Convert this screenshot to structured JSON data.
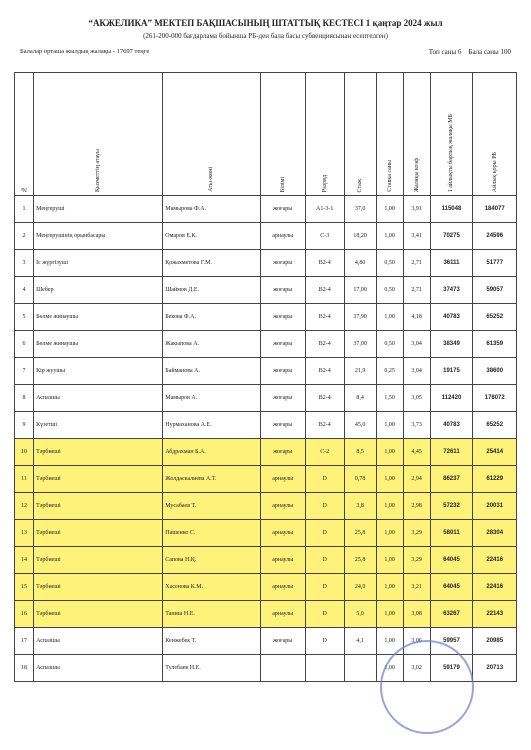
{
  "header": {
    "title": "“АКЖЕЛИКА” МЕКТЕП БАҚШАСЫНЫҢ ШТАТТЫҚ КЕСТЕСІ 1 қаңтар 2024 жыл",
    "subtitle": "(261-200-000 бағдарлама бойынша РБ-ден бала басы субвенциясынан есептелген)",
    "note": "Балалар орташа жылдық жалақы - 17697 теңге",
    "groups": "Топ саны 6",
    "children": "Бала саны 100"
  },
  "table": {
    "columns": [
      "№",
      "Қызметтің атауы",
      "Аты-жөні",
      "Білімі",
      "Разряд",
      "Стаж",
      "Ставка саны",
      "Жалақы коэф",
      "1 айлықты барлық жалақы МБ",
      "Айлық қоры РБ"
    ],
    "rows": [
      [
        "1",
        "Меңгеруші",
        "Мамырова Ф.А.",
        "жоғары",
        "А1-3-1",
        "37,0",
        "1,00",
        "3,91",
        "115048",
        "184077"
      ],
      [
        "2",
        "Меңгерушінің орынбасары",
        "Омаров Е.К.",
        "арнаулы",
        "С-3",
        "18,20",
        "1,00",
        "3,41",
        "70275",
        "24596"
      ],
      [
        "3",
        "Іс жүргізуші",
        "Қожахметова Г.М.",
        "жоғары",
        "В2-4",
        "4,80",
        "0,50",
        "2,71",
        "36111",
        "51777"
      ],
      [
        "4",
        "Шебер",
        "Шаймов Д.Е.",
        "жоғары",
        "В2-4",
        "17,00",
        "0,50",
        "2,71",
        "37473",
        "59057"
      ],
      [
        "5",
        "Бөлме жинаушы",
        "Бекова Ф.А.",
        "жоғары",
        "В2-4",
        "37,90",
        "1,00",
        "4,18",
        "40783",
        "65252"
      ],
      [
        "6",
        "Бөлме жинаушы",
        "Жакыпова А.",
        "жоғары",
        "В2-4",
        "37,00",
        "0,50",
        "3,04",
        "38349",
        "61359"
      ],
      [
        "7",
        "Кір жуушы",
        "Байманова А.",
        "жоғары",
        "В2-4",
        "21,9",
        "0,25",
        "3,04",
        "19175",
        "38600"
      ],
      [
        "8",
        "Аспазшы",
        "Мамыров А.",
        "жоғары",
        "В2-4",
        "8,4",
        "1,50",
        "3,05",
        "112420",
        "178072"
      ],
      [
        "9",
        "Күзетші",
        "Нурмаханова А.Е.",
        "жоғары",
        "В2-4",
        "45,0",
        "1,00",
        "3,73",
        "40783",
        "65252"
      ],
      [
        "10",
        "Тәрбиеші",
        "Абдрахман Б.А.",
        "жоғары",
        "С-2",
        "8,5",
        "1,00",
        "4,45",
        "72611",
        "25414"
      ],
      [
        "11",
        "Тәрбиеші",
        "Жолдаскалиева А.Т.",
        "арнаулы",
        "D",
        "0,78",
        "1,00",
        "2,94",
        "86237",
        "61229"
      ],
      [
        "12",
        "Тәрбиеші",
        "Мусабаев Т.",
        "арнаулы",
        "D",
        "3,8",
        "1,00",
        "2,98",
        "57232",
        "20031"
      ],
      [
        "13",
        "Тәрбиеші",
        "Пашенко С.",
        "арнаулы",
        "D",
        "25,8",
        "1,00",
        "3,29",
        "58011",
        "28304"
      ],
      [
        "14",
        "Тәрбиеші",
        "Сапова Н.Қ.",
        "арнаулы",
        "D",
        "25,8",
        "1,00",
        "3,29",
        "64045",
        "22416"
      ],
      [
        "15",
        "Тәрбиеші",
        "Хасенова К.М.",
        "арнаулы",
        "D",
        "24,0",
        "1,00",
        "3,21",
        "64045",
        "22416"
      ],
      [
        "16",
        "Тәрбиеші",
        "Тапиш Н.Е.",
        "арнаулы",
        "D",
        "5,0",
        "1,00",
        "3,08",
        "63267",
        "22143"
      ],
      [
        "17",
        "Аспазшы",
        "Кенжебек Т.",
        "жоғары",
        "D",
        "4,1",
        "1,00",
        "3,06",
        "59957",
        "20985"
      ],
      [
        "18",
        "Аспазшы",
        "Тулебаев Н.Е.",
        "",
        "",
        "",
        "1,00",
        "3,02",
        "59179",
        "20713"
      ]
    ]
  }
}
